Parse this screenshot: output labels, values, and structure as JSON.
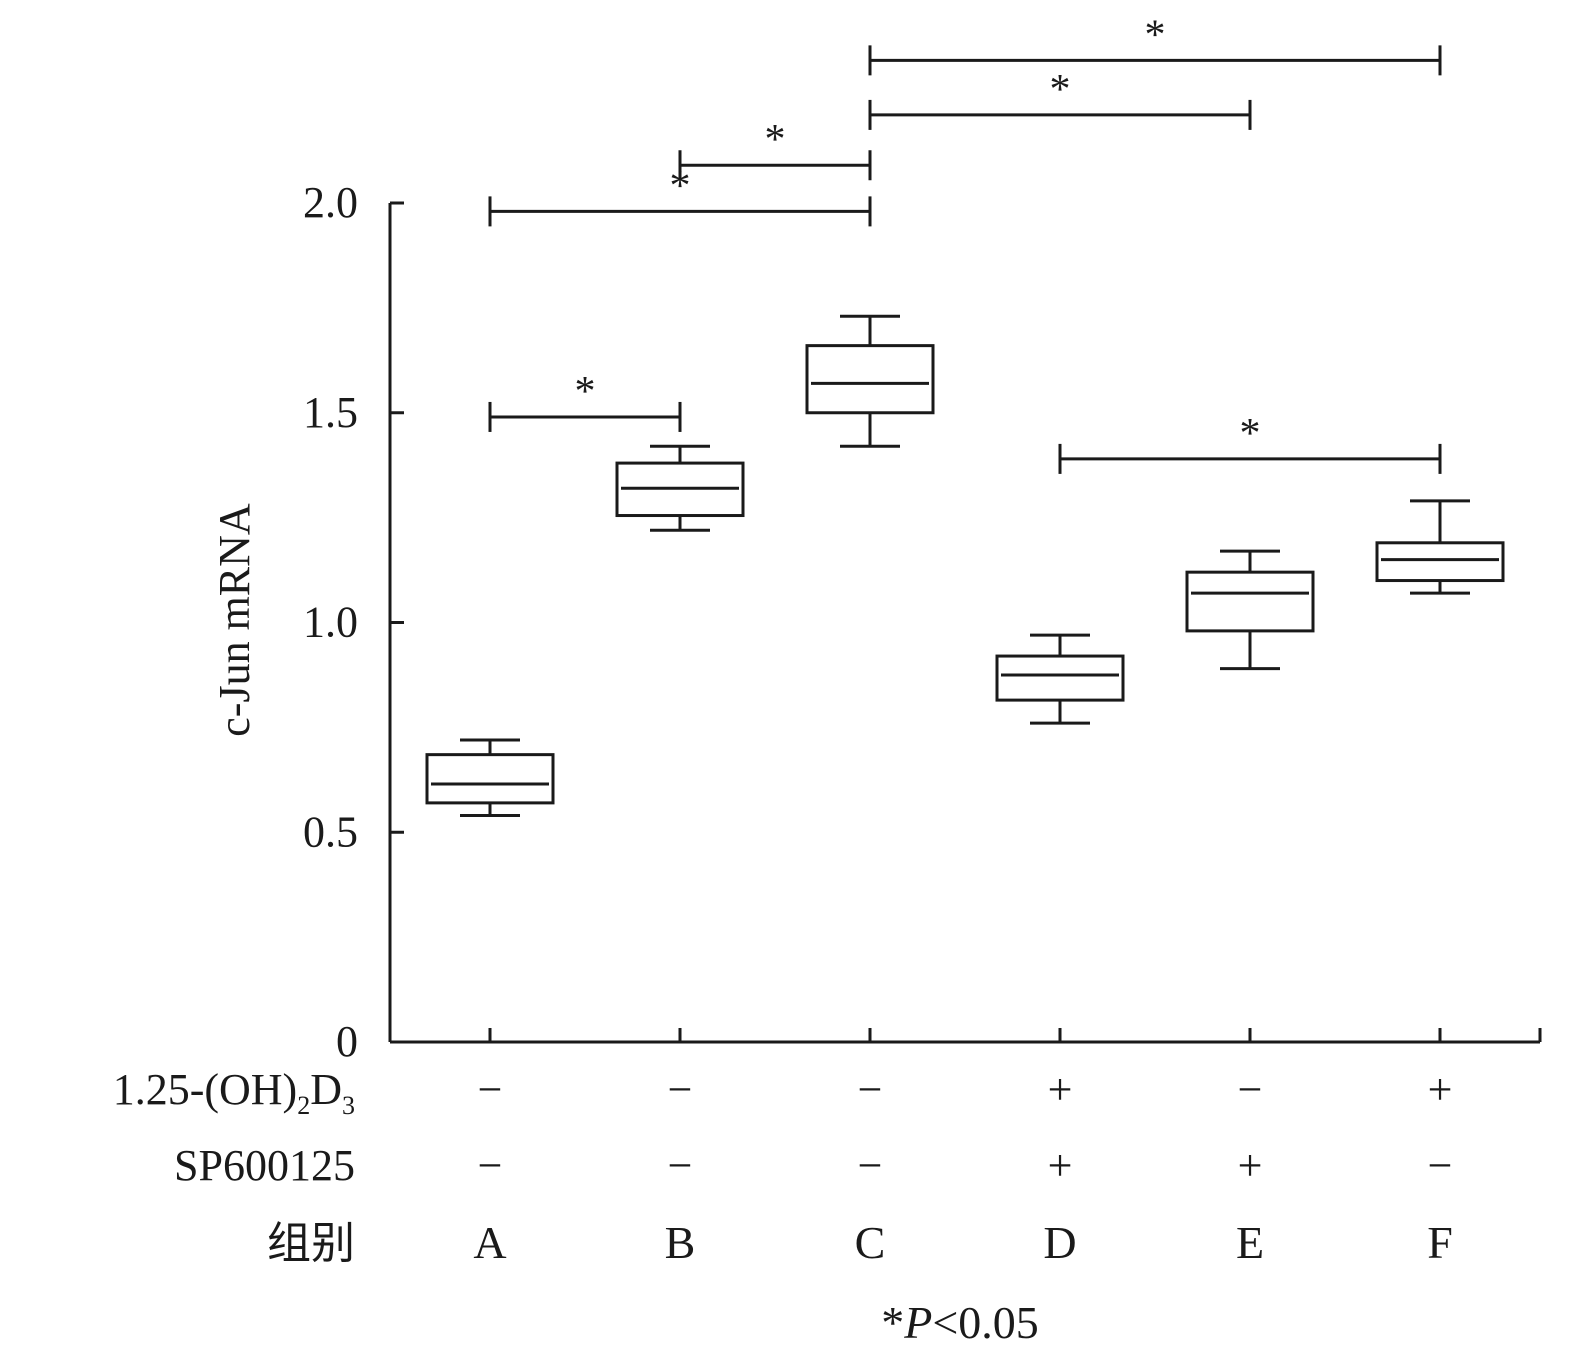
{
  "chart_data": {
    "type": "box",
    "ylabel": "c-Jun mRNA",
    "ylim": [
      0,
      2.0
    ],
    "yticks": [
      {
        "value": 0,
        "label": "0"
      },
      {
        "value": 0.5,
        "label": "0.5"
      },
      {
        "value": 1.0,
        "label": "1.0"
      },
      {
        "value": 1.5,
        "label": "1.5"
      },
      {
        "value": 2.0,
        "label": "2.0"
      }
    ],
    "groups": [
      "A",
      "B",
      "C",
      "D",
      "E",
      "F"
    ],
    "boxes": [
      {
        "group": "A",
        "min": 0.54,
        "q1": 0.57,
        "median": 0.615,
        "q3": 0.685,
        "max": 0.72
      },
      {
        "group": "B",
        "min": 1.22,
        "q1": 1.255,
        "median": 1.32,
        "q3": 1.38,
        "max": 1.42
      },
      {
        "group": "C",
        "min": 1.42,
        "q1": 1.5,
        "median": 1.57,
        "q3": 1.66,
        "max": 1.73
      },
      {
        "group": "D",
        "min": 0.76,
        "q1": 0.815,
        "median": 0.875,
        "q3": 0.92,
        "max": 0.97
      },
      {
        "group": "E",
        "min": 0.89,
        "q1": 0.98,
        "median": 1.07,
        "q3": 1.12,
        "max": 1.17
      },
      {
        "group": "F",
        "min": 1.07,
        "q1": 1.1,
        "median": 1.15,
        "q3": 1.19,
        "max": 1.29
      }
    ],
    "treatments": [
      {
        "label": "1.25-(OH)",
        "sub1": "2",
        "label_mid": "D",
        "sub2": "3",
        "signs": [
          "−",
          "−",
          "−",
          "+",
          "−",
          "+"
        ]
      },
      {
        "label": "SP600125",
        "signs": [
          "−",
          "−",
          "−",
          "+",
          "+",
          "−"
        ]
      }
    ],
    "group_row_label": "组别",
    "significance": [
      {
        "from": "A",
        "to": "B",
        "y": 1.49,
        "mark": "*"
      },
      {
        "from": "D",
        "to": "F",
        "y": 1.39,
        "mark": "*"
      },
      {
        "from": "A",
        "to": "C",
        "y": 1.98,
        "mark": "*"
      },
      {
        "from": "B",
        "to": "C",
        "y": 2.09,
        "mark": "*"
      },
      {
        "from": "C",
        "to": "E",
        "y": 2.21,
        "mark": "*"
      },
      {
        "from": "C",
        "to": "F",
        "y": 2.34,
        "mark": "*"
      }
    ],
    "footnote": {
      "star": "*",
      "p": "P",
      "rest": "<0.05"
    }
  }
}
